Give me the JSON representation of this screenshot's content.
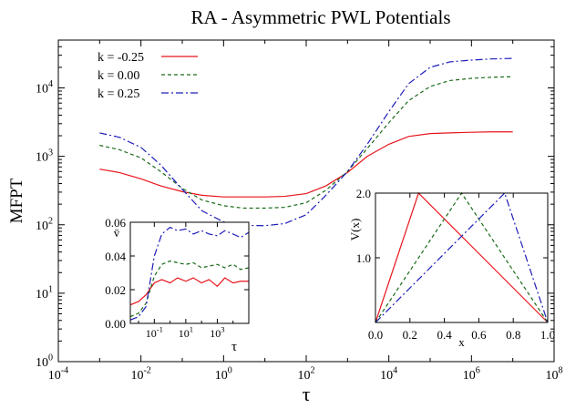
{
  "chart_data": [
    {
      "id": "main",
      "type": "line",
      "title": "RA - Asymmetric PWL Potentials",
      "xlabel": "τ",
      "ylabel": "MFPT",
      "xscale": "log",
      "yscale": "log",
      "xlim": [
        0.0001,
        100000000
      ],
      "ylim": [
        1,
        50000
      ],
      "x_ticks": [
        {
          "value": 0.0001,
          "base": "10",
          "exp": "-4"
        },
        {
          "value": 0.01,
          "base": "10",
          "exp": "-2"
        },
        {
          "value": 1,
          "base": "10",
          "exp": "0"
        },
        {
          "value": 100,
          "base": "10",
          "exp": "2"
        },
        {
          "value": 10000,
          "base": "10",
          "exp": "4"
        },
        {
          "value": 1000000,
          "base": "10",
          "exp": "6"
        },
        {
          "value": 100000000,
          "base": "10",
          "exp": "8"
        }
      ],
      "y_ticks": [
        {
          "value": 1,
          "base": "10",
          "exp": "0"
        },
        {
          "value": 10,
          "base": "10",
          "exp": "1"
        },
        {
          "value": 100,
          "base": "10",
          "exp": "2"
        },
        {
          "value": 1000,
          "base": "10",
          "exp": "3"
        },
        {
          "value": 10000,
          "base": "10",
          "exp": "4"
        }
      ],
      "legend_position": "top-left",
      "series": [
        {
          "name": "k = -0.25",
          "color": "#e8141b",
          "dash": "solid",
          "x": [
            0.001,
            0.003,
            0.01,
            0.03,
            0.1,
            0.3,
            1,
            3,
            10,
            30,
            100,
            300,
            1000,
            3000,
            10000,
            30000,
            100000,
            300000,
            1000000,
            3000000,
            10000000
          ],
          "y": [
            650,
            580,
            470,
            370,
            305,
            270,
            255,
            255,
            255,
            260,
            285,
            370,
            580,
            1000,
            1500,
            1950,
            2150,
            2200,
            2250,
            2280,
            2280
          ]
        },
        {
          "name": "k = 0.00",
          "color": "#1a6b1a",
          "dash": "4,3",
          "x": [
            0.001,
            0.003,
            0.01,
            0.03,
            0.1,
            0.3,
            1,
            3,
            10,
            30,
            100,
            300,
            1000,
            3000,
            10000,
            30000,
            100000,
            300000,
            1000000,
            3000000,
            10000000
          ],
          "y": [
            1450,
            1250,
            950,
            600,
            340,
            230,
            190,
            175,
            175,
            180,
            210,
            320,
            600,
            1300,
            3100,
            6500,
            10500,
            12800,
            13800,
            14300,
            14600
          ]
        },
        {
          "name": "k = 0.25",
          "color": "#1d1db8",
          "dash": "8,3,2,3",
          "x": [
            0.001,
            0.003,
            0.01,
            0.03,
            0.1,
            0.3,
            1,
            3,
            10,
            30,
            100,
            300,
            1000,
            3000,
            10000,
            30000,
            100000,
            300000,
            1000000,
            3000000,
            10000000
          ],
          "y": [
            2200,
            1900,
            1350,
            750,
            330,
            160,
            110,
            98,
            97,
            104,
            140,
            270,
            600,
            1500,
            4500,
            11500,
            20000,
            24000,
            25500,
            26500,
            27000
          ]
        }
      ]
    },
    {
      "id": "inset-velocity",
      "type": "line",
      "xlabel": "τ",
      "ylabel": "v̄",
      "xscale": "log",
      "xlim": [
        0.003,
        100000
      ],
      "ylim": [
        0,
        0.06
      ],
      "x_ticks": [
        {
          "value": 0.1,
          "base": "10",
          "exp": "-1"
        },
        {
          "value": 10,
          "base": "10",
          "exp": "1"
        },
        {
          "value": 1000,
          "base": "10",
          "exp": "3"
        }
      ],
      "y_ticks": [
        {
          "value": 0,
          "label": "0.00"
        },
        {
          "value": 0.02,
          "label": "0.02"
        },
        {
          "value": 0.04,
          "label": "0.04"
        },
        {
          "value": 0.06,
          "label": "0.06"
        }
      ],
      "series": [
        {
          "name": "k = -0.25",
          "color": "#e8141b",
          "dash": "solid",
          "x": [
            0.003,
            0.01,
            0.03,
            0.1,
            0.3,
            1,
            3,
            10,
            30,
            100,
            300,
            1000,
            3000,
            10000,
            30000,
            100000
          ],
          "y": [
            0.011,
            0.013,
            0.017,
            0.024,
            0.026,
            0.024,
            0.027,
            0.025,
            0.027,
            0.024,
            0.026,
            0.022,
            0.027,
            0.024,
            0.025,
            0.025
          ]
        },
        {
          "name": "k = 0.00",
          "color": "#1a6b1a",
          "dash": "4,3",
          "x": [
            0.003,
            0.01,
            0.03,
            0.1,
            0.3,
            1,
            3,
            10,
            30,
            100,
            300,
            1000,
            3000,
            10000,
            30000,
            100000
          ],
          "y": [
            0.004,
            0.006,
            0.012,
            0.028,
            0.035,
            0.037,
            0.036,
            0.035,
            0.036,
            0.033,
            0.034,
            0.035,
            0.033,
            0.035,
            0.032,
            0.033
          ]
        },
        {
          "name": "k = 0.25",
          "color": "#1d1db8",
          "dash": "8,3,2,3",
          "x": [
            0.003,
            0.01,
            0.03,
            0.1,
            0.3,
            1,
            3,
            10,
            30,
            100,
            300,
            1000,
            3000,
            10000,
            30000,
            100000
          ],
          "y": [
            0.002,
            0.004,
            0.01,
            0.04,
            0.053,
            0.057,
            0.055,
            0.056,
            0.053,
            0.055,
            0.053,
            0.052,
            0.055,
            0.053,
            0.051,
            0.054
          ]
        }
      ]
    },
    {
      "id": "inset-potential",
      "type": "line",
      "xlabel": "x",
      "ylabel": "V(x)",
      "xlim": [
        0,
        1
      ],
      "ylim": [
        0,
        2
      ],
      "x_ticks": [
        {
          "value": 0,
          "label": "0.0"
        },
        {
          "value": 0.2,
          "label": "0.2"
        },
        {
          "value": 0.4,
          "label": "0.4"
        },
        {
          "value": 0.6,
          "label": "0.6"
        },
        {
          "value": 0.8,
          "label": "0.8"
        },
        {
          "value": 1,
          "label": "1.0"
        }
      ],
      "y_ticks": [
        {
          "value": 1,
          "label": "1.0"
        },
        {
          "value": 2,
          "label": "2.0"
        }
      ],
      "series": [
        {
          "name": "k = -0.25",
          "color": "#e8141b",
          "dash": "solid",
          "x": [
            0,
            0.25,
            1
          ],
          "y": [
            0,
            2,
            0
          ]
        },
        {
          "name": "k = 0.00",
          "color": "#1a6b1a",
          "dash": "4,3",
          "x": [
            0,
            0.5,
            1
          ],
          "y": [
            0,
            2,
            0
          ]
        },
        {
          "name": "k = 0.25",
          "color": "#1d1db8",
          "dash": "8,3,2,3",
          "x": [
            0,
            0.75,
            1
          ],
          "y": [
            0,
            2,
            0
          ]
        }
      ]
    }
  ]
}
